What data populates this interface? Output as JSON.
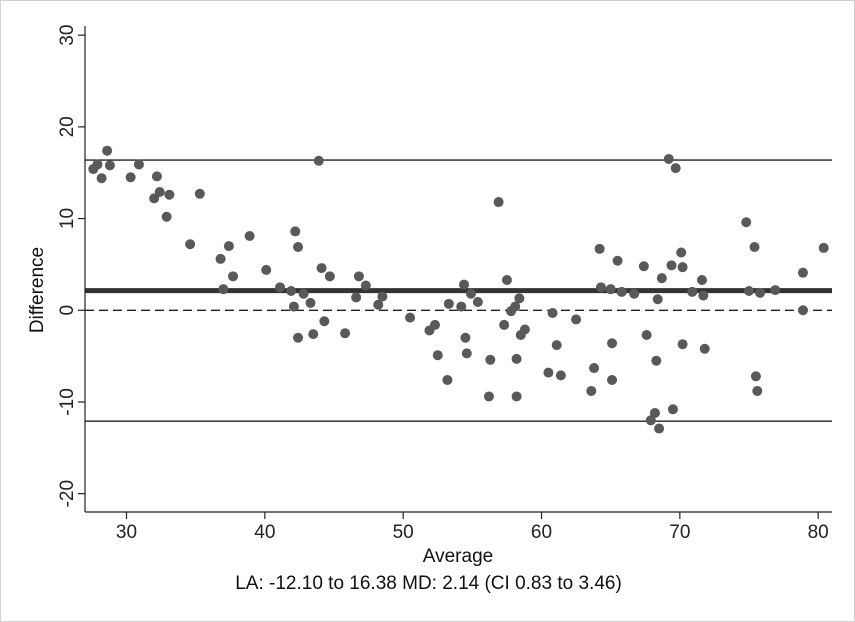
{
  "chart_data": {
    "type": "scatter",
    "title": "",
    "xlabel": "Average",
    "ylabel": "Difference",
    "xlim": [
      27,
      81
    ],
    "ylim": [
      -22,
      31
    ],
    "xticks": [
      30,
      40,
      50,
      60,
      70,
      80
    ],
    "yticks": [
      -20,
      -10,
      0,
      10,
      20,
      30
    ],
    "grid": false,
    "reference_lines": [
      {
        "name": "upper limit of agreement",
        "y": 16.38,
        "style": "solid"
      },
      {
        "name": "mean difference",
        "y": 2.14,
        "style": "thick"
      },
      {
        "name": "zero",
        "y": 0,
        "style": "dashed"
      },
      {
        "name": "lower limit of agreement",
        "y": -12.1,
        "style": "solid"
      }
    ],
    "points": [
      [
        27.6,
        15.4
      ],
      [
        27.9,
        15.9
      ],
      [
        28.2,
        14.4
      ],
      [
        28.6,
        17.4
      ],
      [
        28.8,
        15.8
      ],
      [
        30.3,
        14.5
      ],
      [
        30.9,
        15.9
      ],
      [
        32.0,
        12.2
      ],
      [
        32.2,
        14.6
      ],
      [
        32.4,
        12.9
      ],
      [
        32.9,
        10.2
      ],
      [
        33.1,
        12.6
      ],
      [
        34.6,
        7.2
      ],
      [
        35.3,
        12.7
      ],
      [
        36.8,
        5.6
      ],
      [
        37.0,
        2.3
      ],
      [
        37.4,
        7.0
      ],
      [
        37.7,
        3.7
      ],
      [
        38.9,
        8.1
      ],
      [
        40.1,
        4.4
      ],
      [
        41.1,
        2.5
      ],
      [
        41.9,
        2.1
      ],
      [
        42.1,
        0.4
      ],
      [
        42.2,
        8.6
      ],
      [
        42.4,
        6.9
      ],
      [
        42.4,
        -3.0
      ],
      [
        42.8,
        1.8
      ],
      [
        43.3,
        0.8
      ],
      [
        43.5,
        -2.6
      ],
      [
        43.9,
        16.3
      ],
      [
        44.1,
        4.6
      ],
      [
        44.3,
        -1.2
      ],
      [
        44.7,
        3.7
      ],
      [
        45.8,
        -2.5
      ],
      [
        46.6,
        1.4
      ],
      [
        46.8,
        3.7
      ],
      [
        47.3,
        2.7
      ],
      [
        48.2,
        0.6
      ],
      [
        48.5,
        1.5
      ],
      [
        50.5,
        -0.8
      ],
      [
        51.9,
        -2.2
      ],
      [
        52.3,
        -1.6
      ],
      [
        52.5,
        -4.9
      ],
      [
        53.2,
        -7.6
      ],
      [
        53.3,
        0.7
      ],
      [
        54.2,
        0.4
      ],
      [
        54.4,
        2.8
      ],
      [
        54.5,
        -3.0
      ],
      [
        54.6,
        -4.7
      ],
      [
        54.9,
        1.8
      ],
      [
        55.4,
        0.9
      ],
      [
        56.2,
        -9.4
      ],
      [
        56.3,
        -5.4
      ],
      [
        56.9,
        11.8
      ],
      [
        57.3,
        -1.6
      ],
      [
        57.5,
        3.3
      ],
      [
        57.8,
        -0.1
      ],
      [
        58.1,
        0.4
      ],
      [
        58.2,
        -9.4
      ],
      [
        58.2,
        -5.3
      ],
      [
        58.4,
        1.3
      ],
      [
        58.5,
        -2.7
      ],
      [
        58.8,
        -2.1
      ],
      [
        60.5,
        -6.8
      ],
      [
        60.8,
        -0.3
      ],
      [
        61.1,
        -3.8
      ],
      [
        61.4,
        -7.1
      ],
      [
        62.5,
        -1.0
      ],
      [
        63.6,
        -8.8
      ],
      [
        63.8,
        -6.3
      ],
      [
        64.2,
        6.7
      ],
      [
        64.3,
        2.5
      ],
      [
        65.0,
        2.3
      ],
      [
        65.1,
        -3.6
      ],
      [
        65.1,
        -7.6
      ],
      [
        65.5,
        5.4
      ],
      [
        65.8,
        2.0
      ],
      [
        66.7,
        1.8
      ],
      [
        67.4,
        4.8
      ],
      [
        67.6,
        -2.7
      ],
      [
        67.9,
        -12.0
      ],
      [
        68.2,
        -11.2
      ],
      [
        68.3,
        -5.5
      ],
      [
        68.4,
        1.2
      ],
      [
        68.5,
        -12.9
      ],
      [
        68.7,
        3.5
      ],
      [
        69.2,
        16.5
      ],
      [
        69.4,
        4.9
      ],
      [
        69.5,
        -10.8
      ],
      [
        69.7,
        15.5
      ],
      [
        70.1,
        6.3
      ],
      [
        70.2,
        4.7
      ],
      [
        70.2,
        -3.7
      ],
      [
        70.9,
        2.0
      ],
      [
        71.6,
        3.3
      ],
      [
        71.7,
        1.6
      ],
      [
        71.8,
        -4.2
      ],
      [
        74.8,
        9.6
      ],
      [
        75.0,
        2.1
      ],
      [
        75.4,
        6.9
      ],
      [
        75.5,
        -7.2
      ],
      [
        75.6,
        -8.8
      ],
      [
        75.8,
        1.9
      ],
      [
        76.9,
        2.2
      ],
      [
        78.9,
        4.1
      ],
      [
        78.9,
        0.0
      ],
      [
        80.4,
        6.8
      ]
    ],
    "caption": "LA: -12.10 to 16.38 MD: 2.14 (CI 0.83 to 3.46)",
    "colors": {
      "points": "#595959",
      "lines": "#222222"
    }
  }
}
